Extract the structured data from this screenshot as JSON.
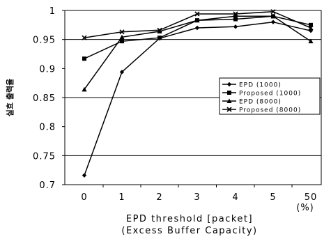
{
  "chart_data": {
    "type": "line",
    "title": "",
    "xlabel": "EPD threshold [packet]",
    "xlabel2": "(Excess Buffer Capacity)",
    "ylabel": "실효 출력율",
    "categories": [
      "0",
      "1",
      "2",
      "3",
      "4",
      "5",
      "50"
    ],
    "x_unit_label": "(%)",
    "ylim": [
      0.7,
      1.0
    ],
    "yticks": [
      "0.7",
      "0.75",
      "0.8",
      "0.85",
      "0.9",
      "0.95",
      "1"
    ],
    "grid": "horizontal at 0.75, 0.85, 0.95",
    "legend_position": "right",
    "series": [
      {
        "name": "EPD (1000)",
        "marker": "diamond",
        "values": [
          0.716,
          0.894,
          0.952,
          0.97,
          0.972,
          0.98,
          0.965
        ]
      },
      {
        "name": "Proposed (1000)",
        "marker": "square",
        "values": [
          0.917,
          0.947,
          0.953,
          0.983,
          0.985,
          0.99,
          0.975
        ]
      },
      {
        "name": "EPD (8000)",
        "marker": "triangle",
        "values": [
          0.864,
          0.954,
          0.964,
          0.983,
          0.99,
          0.99,
          0.947
        ]
      },
      {
        "name": "Proposed (8000)",
        "marker": "x",
        "values": [
          0.953,
          0.963,
          0.966,
          0.994,
          0.994,
          0.998,
          0.97
        ]
      }
    ]
  }
}
